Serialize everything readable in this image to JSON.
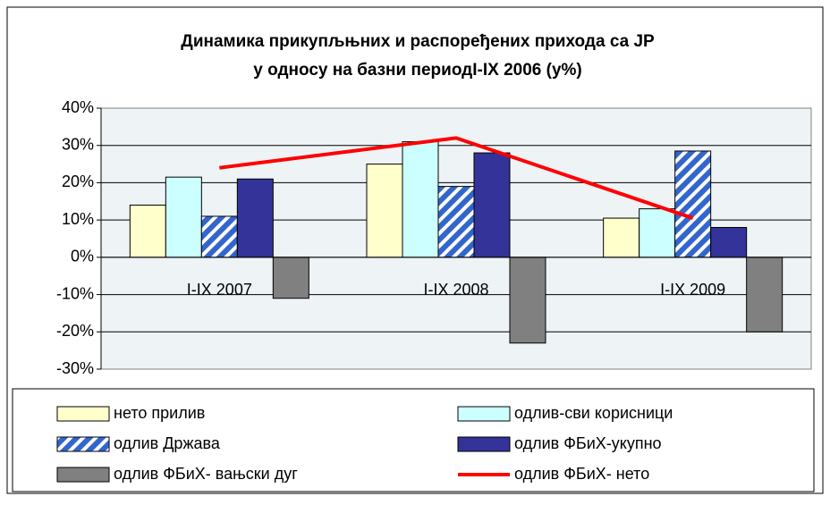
{
  "chart_data": {
    "type": "bar",
    "title": [
      "Динамика прикупљњних и распоређених прихода са ЈР",
      "у односу на базни периодI-IX 2006 (у%)"
    ],
    "categories": [
      "I-IX 2007",
      "I-IX 2008",
      "I-IX 2009"
    ],
    "series": [
      {
        "name": "нето прилив",
        "color": "#ffffcc",
        "values": [
          14,
          25,
          10.5
        ]
      },
      {
        "name": "одлив-сви корисници",
        "color": "#ccffff",
        "values": [
          21.5,
          31,
          13
        ]
      },
      {
        "name": "одлив Држава",
        "color": "#3366cc",
        "pattern": "hatch",
        "values": [
          11,
          19,
          28.5
        ]
      },
      {
        "name": "одлив ФБиХ-укупно",
        "color": "#333399",
        "values": [
          21,
          28,
          8
        ]
      },
      {
        "name": "одлив ФБиХ- вањски дуг",
        "color": "#808080",
        "values": [
          -11,
          -23,
          -20
        ]
      },
      {
        "name": "одлив ФБиХ- нето",
        "color": "#ff0000",
        "type": "line",
        "values": [
          24,
          32,
          10.5
        ]
      }
    ],
    "ylim": [
      -30,
      40
    ],
    "yticks": [
      {
        "value": -30,
        "label": "-30%"
      },
      {
        "value": -20,
        "label": "-20%"
      },
      {
        "value": -10,
        "label": "-10%"
      },
      {
        "value": 0,
        "label": "0%"
      },
      {
        "value": 10,
        "label": "10%"
      },
      {
        "value": 20,
        "label": "20%"
      },
      {
        "value": 30,
        "label": "30%"
      },
      {
        "value": 40,
        "label": "40%"
      }
    ],
    "grid": true,
    "legend": "bottom"
  }
}
